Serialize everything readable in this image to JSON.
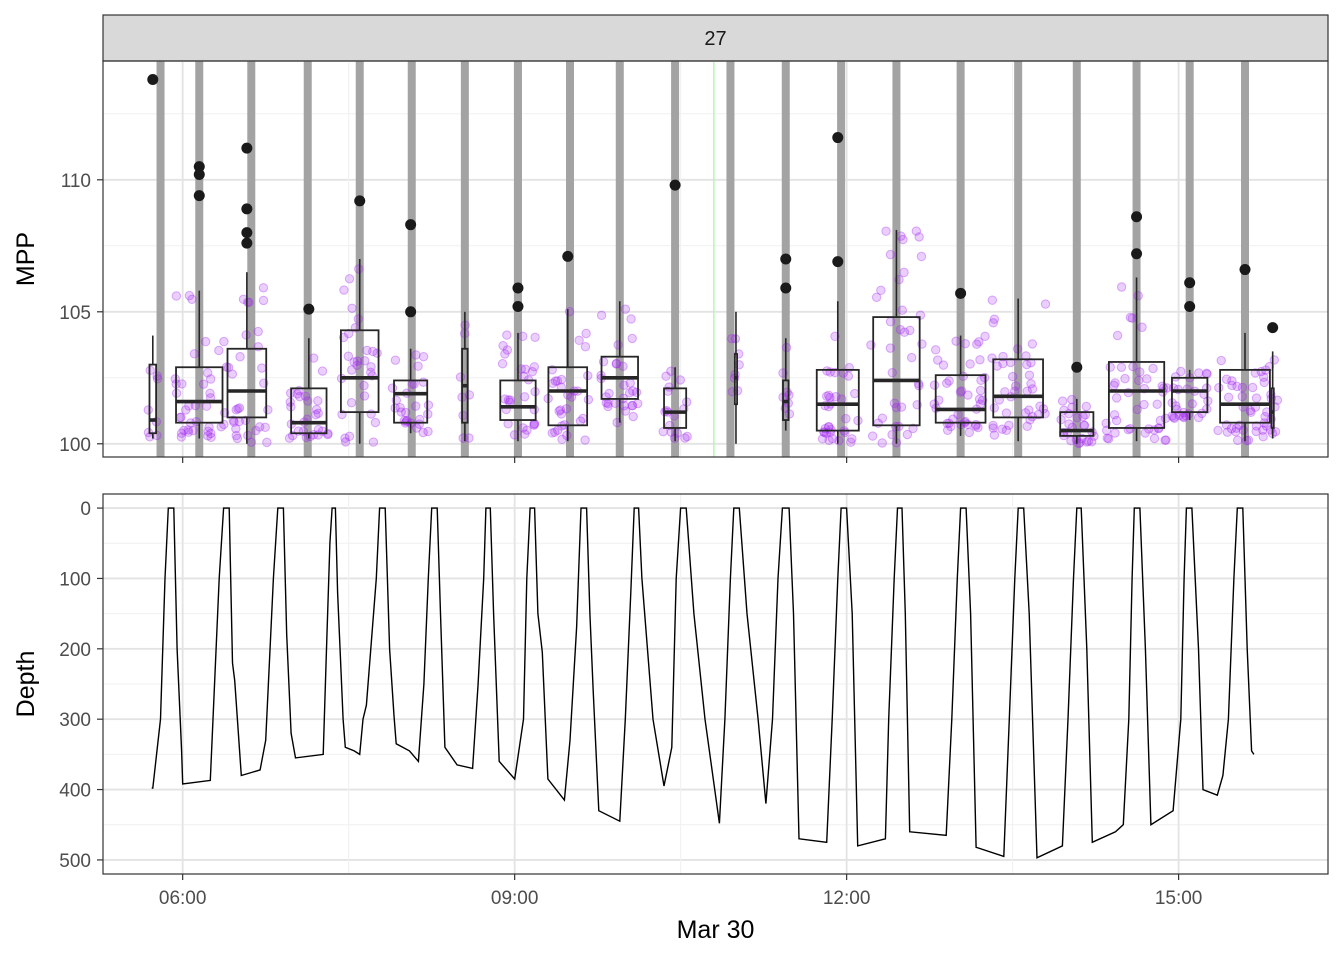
{
  "chart_data": [
    {
      "type": "box",
      "facet_label": "27",
      "ylabel": "MPP",
      "xlabel": "",
      "ylim": [
        99.5,
        114.5
      ],
      "yticks": [
        100,
        105,
        110
      ],
      "grid": true,
      "vertical_bars_hours": [
        5.8,
        6.15,
        6.62,
        7.13,
        7.6,
        8.07,
        8.55,
        9.03,
        9.5,
        9.95,
        10.45,
        10.95,
        11.45,
        11.95,
        12.45,
        13.03,
        13.55,
        14.08,
        14.62,
        15.1,
        15.6
      ],
      "boxes": [
        {
          "x": 5.73,
          "w": 0.06,
          "q1": 100.4,
          "median": 100.9,
          "q3": 103.0,
          "lo": 100.2,
          "hi": 104.1,
          "outliers": [
            113.8
          ]
        },
        {
          "x": 6.15,
          "w": 0.42,
          "q1": 100.8,
          "median": 101.6,
          "q3": 102.9,
          "lo": 100.2,
          "hi": 105.8,
          "outliers": [
            110.5,
            110.2,
            109.4
          ]
        },
        {
          "x": 6.58,
          "w": 0.35,
          "q1": 101.0,
          "median": 102.0,
          "q3": 103.6,
          "lo": 100.0,
          "hi": 106.5,
          "outliers": [
            111.2,
            108.9,
            108.0,
            107.6
          ]
        },
        {
          "x": 7.14,
          "w": 0.32,
          "q1": 100.4,
          "median": 100.8,
          "q3": 102.1,
          "lo": 100.2,
          "hi": 104.0,
          "outliers": [
            105.1
          ]
        },
        {
          "x": 7.6,
          "w": 0.34,
          "q1": 101.2,
          "median": 102.5,
          "q3": 104.3,
          "lo": 100.0,
          "hi": 107.0,
          "outliers": [
            109.2
          ]
        },
        {
          "x": 8.06,
          "w": 0.3,
          "q1": 100.8,
          "median": 101.9,
          "q3": 102.4,
          "lo": 100.4,
          "hi": 103.6,
          "outliers": [
            108.3,
            105.0
          ]
        },
        {
          "x": 8.55,
          "w": 0.05,
          "q1": 100.8,
          "median": 102.2,
          "q3": 103.6,
          "lo": 100.1,
          "hi": 105.0,
          "outliers": []
        },
        {
          "x": 9.03,
          "w": 0.32,
          "q1": 100.9,
          "median": 101.4,
          "q3": 102.4,
          "lo": 100.1,
          "hi": 104.2,
          "outliers": [
            105.9,
            105.2
          ]
        },
        {
          "x": 9.48,
          "w": 0.35,
          "q1": 100.7,
          "median": 102.0,
          "q3": 102.9,
          "lo": 100.1,
          "hi": 105.1,
          "outliers": [
            107.1
          ]
        },
        {
          "x": 9.95,
          "w": 0.33,
          "q1": 101.7,
          "median": 102.5,
          "q3": 103.3,
          "lo": 100.8,
          "hi": 105.4,
          "outliers": []
        },
        {
          "x": 10.45,
          "w": 0.2,
          "q1": 100.6,
          "median": 101.2,
          "q3": 102.1,
          "lo": 100.1,
          "hi": 102.9,
          "outliers": [
            109.8
          ]
        },
        {
          "x": 11.0,
          "w": 0.02,
          "q1": 101.5,
          "median": 102.5,
          "q3": 103.4,
          "lo": 100.0,
          "hi": 105.0,
          "outliers": []
        },
        {
          "x": 11.45,
          "w": 0.05,
          "q1": 100.9,
          "median": 101.6,
          "q3": 102.4,
          "lo": 100.5,
          "hi": 104.0,
          "outliers": [
            107.0,
            105.9
          ]
        },
        {
          "x": 11.92,
          "w": 0.38,
          "q1": 100.5,
          "median": 101.5,
          "q3": 102.8,
          "lo": 100.0,
          "hi": 105.4,
          "outliers": [
            111.6,
            106.9
          ]
        },
        {
          "x": 12.45,
          "w": 0.42,
          "q1": 100.7,
          "median": 102.4,
          "q3": 104.8,
          "lo": 100.0,
          "hi": 108.1,
          "outliers": []
        },
        {
          "x": 13.03,
          "w": 0.45,
          "q1": 100.8,
          "median": 101.3,
          "q3": 102.6,
          "lo": 100.3,
          "hi": 104.1,
          "outliers": [
            105.7
          ]
        },
        {
          "x": 13.55,
          "w": 0.45,
          "q1": 101.0,
          "median": 101.8,
          "q3": 103.2,
          "lo": 100.1,
          "hi": 105.5,
          "outliers": []
        },
        {
          "x": 14.08,
          "w": 0.3,
          "q1": 100.3,
          "median": 100.5,
          "q3": 101.2,
          "lo": 100.0,
          "hi": 101.7,
          "outliers": [
            102.9
          ]
        },
        {
          "x": 14.62,
          "w": 0.5,
          "q1": 100.6,
          "median": 102.0,
          "q3": 103.1,
          "lo": 100.1,
          "hi": 106.3,
          "outliers": [
            108.6,
            107.2
          ]
        },
        {
          "x": 15.1,
          "w": 0.32,
          "q1": 101.2,
          "median": 102.0,
          "q3": 102.5,
          "lo": 100.9,
          "hi": 102.8,
          "outliers": [
            106.1,
            105.2
          ]
        },
        {
          "x": 15.6,
          "w": 0.45,
          "q1": 100.8,
          "median": 101.5,
          "q3": 102.8,
          "lo": 100.1,
          "hi": 104.2,
          "outliers": [
            106.6
          ]
        },
        {
          "x": 15.85,
          "w": 0.02,
          "q1": 100.6,
          "median": 101.2,
          "q3": 102.1,
          "lo": 100.2,
          "hi": 103.5,
          "outliers": [
            104.4
          ]
        }
      ],
      "point_color": "#a020f0",
      "bar_color": "#a3a3a3",
      "greenline_hours": 10.8
    },
    {
      "type": "line",
      "ylabel": "Depth",
      "xlabel": "Mar 30",
      "ylim": [
        520,
        -20
      ],
      "yticks": [
        0,
        100,
        200,
        300,
        400,
        500
      ],
      "xticks": [
        {
          "hour": 6,
          "label": "06:00"
        },
        {
          "hour": 9,
          "label": "09:00"
        },
        {
          "hour": 12,
          "label": "12:00"
        },
        {
          "hour": 15,
          "label": "15:00"
        }
      ],
      "xlim": [
        5.28,
        16.35
      ],
      "series": [
        {
          "values": [
            [
              5.72,
              398
            ],
            [
              5.73,
              398
            ],
            [
              5.8,
              300
            ],
            [
              5.84,
              100
            ],
            [
              5.87,
              0
            ],
            [
              5.92,
              0
            ],
            [
              5.95,
              200
            ],
            [
              5.99,
              345
            ],
            [
              6.0,
              392
            ],
            [
              6.25,
              387
            ],
            [
              6.33,
              100
            ],
            [
              6.37,
              0
            ],
            [
              6.42,
              0
            ],
            [
              6.45,
              220
            ],
            [
              6.47,
              245
            ],
            [
              6.53,
              380
            ],
            [
              6.7,
              372
            ],
            [
              6.75,
              330
            ],
            [
              6.82,
              100
            ],
            [
              6.86,
              0
            ],
            [
              6.91,
              0
            ],
            [
              6.94,
              180
            ],
            [
              6.98,
              320
            ],
            [
              7.02,
              355
            ],
            [
              7.27,
              350
            ],
            [
              7.3,
              200
            ],
            [
              7.33,
              50
            ],
            [
              7.35,
              0
            ],
            [
              7.38,
              0
            ],
            [
              7.4,
              120
            ],
            [
              7.45,
              300
            ],
            [
              7.47,
              340
            ],
            [
              7.55,
              345
            ],
            [
              7.6,
              350
            ],
            [
              7.63,
              300
            ],
            [
              7.66,
              280
            ],
            [
              7.7,
              200
            ],
            [
              7.75,
              100
            ],
            [
              7.78,
              0
            ],
            [
              7.83,
              0
            ],
            [
              7.87,
              200
            ],
            [
              7.91,
              295
            ],
            [
              7.93,
              335
            ],
            [
              8.05,
              345
            ],
            [
              8.13,
              360
            ],
            [
              8.18,
              250
            ],
            [
              8.22,
              100
            ],
            [
              8.25,
              0
            ],
            [
              8.3,
              0
            ],
            [
              8.33,
              150
            ],
            [
              8.37,
              340
            ],
            [
              8.48,
              365
            ],
            [
              8.62,
              370
            ],
            [
              8.67,
              250
            ],
            [
              8.72,
              100
            ],
            [
              8.74,
              0
            ],
            [
              8.78,
              0
            ],
            [
              8.81,
              150
            ],
            [
              8.86,
              360
            ],
            [
              9.0,
              385
            ],
            [
              9.08,
              300
            ],
            [
              9.11,
              100
            ],
            [
              9.14,
              0
            ],
            [
              9.18,
              0
            ],
            [
              9.21,
              150
            ],
            [
              9.25,
              205
            ],
            [
              9.3,
              385
            ],
            [
              9.45,
              415
            ],
            [
              9.5,
              330
            ],
            [
              9.56,
              170
            ],
            [
              9.6,
              0
            ],
            [
              9.65,
              0
            ],
            [
              9.68,
              150
            ],
            [
              9.71,
              260
            ],
            [
              9.76,
              430
            ],
            [
              9.95,
              445
            ],
            [
              10.0,
              300
            ],
            [
              10.05,
              120
            ],
            [
              10.08,
              0
            ],
            [
              10.12,
              0
            ],
            [
              10.15,
              100
            ],
            [
              10.25,
              300
            ],
            [
              10.35,
              395
            ],
            [
              10.42,
              340
            ],
            [
              10.46,
              100
            ],
            [
              10.5,
              0
            ],
            [
              10.55,
              0
            ],
            [
              10.62,
              150
            ],
            [
              10.72,
              300
            ],
            [
              10.85,
              448
            ],
            [
              10.9,
              300
            ],
            [
              10.95,
              100
            ],
            [
              10.98,
              0
            ],
            [
              11.03,
              0
            ],
            [
              11.1,
              150
            ],
            [
              11.2,
              300
            ],
            [
              11.27,
              420
            ],
            [
              11.33,
              300
            ],
            [
              11.38,
              100
            ],
            [
              11.42,
              0
            ],
            [
              11.48,
              0
            ],
            [
              11.52,
              150
            ],
            [
              11.57,
              470
            ],
            [
              11.82,
              475
            ],
            [
              11.87,
              300
            ],
            [
              11.92,
              100
            ],
            [
              11.95,
              0
            ],
            [
              12.0,
              0
            ],
            [
              12.05,
              150
            ],
            [
              12.1,
              480
            ],
            [
              12.35,
              470
            ],
            [
              12.38,
              300
            ],
            [
              12.43,
              100
            ],
            [
              12.46,
              0
            ],
            [
              12.5,
              0
            ],
            [
              12.53,
              150
            ],
            [
              12.57,
              460
            ],
            [
              12.9,
              465
            ],
            [
              12.95,
              300
            ],
            [
              13.0,
              100
            ],
            [
              13.03,
              0
            ],
            [
              13.08,
              0
            ],
            [
              13.12,
              150
            ],
            [
              13.17,
              482
            ],
            [
              13.42,
              495
            ],
            [
              13.47,
              300
            ],
            [
              13.52,
              100
            ],
            [
              13.55,
              0
            ],
            [
              13.6,
              0
            ],
            [
              13.65,
              150
            ],
            [
              13.72,
              497
            ],
            [
              13.95,
              480
            ],
            [
              14.0,
              300
            ],
            [
              14.05,
              100
            ],
            [
              14.08,
              0
            ],
            [
              14.12,
              0
            ],
            [
              14.17,
              200
            ],
            [
              14.22,
              475
            ],
            [
              14.43,
              460
            ],
            [
              14.5,
              450
            ],
            [
              14.55,
              300
            ],
            [
              14.58,
              100
            ],
            [
              14.6,
              0
            ],
            [
              14.65,
              0
            ],
            [
              14.7,
              200
            ],
            [
              14.75,
              450
            ],
            [
              14.95,
              430
            ],
            [
              15.02,
              300
            ],
            [
              15.05,
              100
            ],
            [
              15.07,
              0
            ],
            [
              15.12,
              0
            ],
            [
              15.18,
              200
            ],
            [
              15.22,
              400
            ],
            [
              15.35,
              408
            ],
            [
              15.4,
              380
            ],
            [
              15.45,
              300
            ],
            [
              15.5,
              100
            ],
            [
              15.53,
              0
            ],
            [
              15.58,
              0
            ],
            [
              15.62,
              200
            ],
            [
              15.66,
              345
            ],
            [
              15.68,
              350
            ]
          ]
        }
      ]
    }
  ]
}
